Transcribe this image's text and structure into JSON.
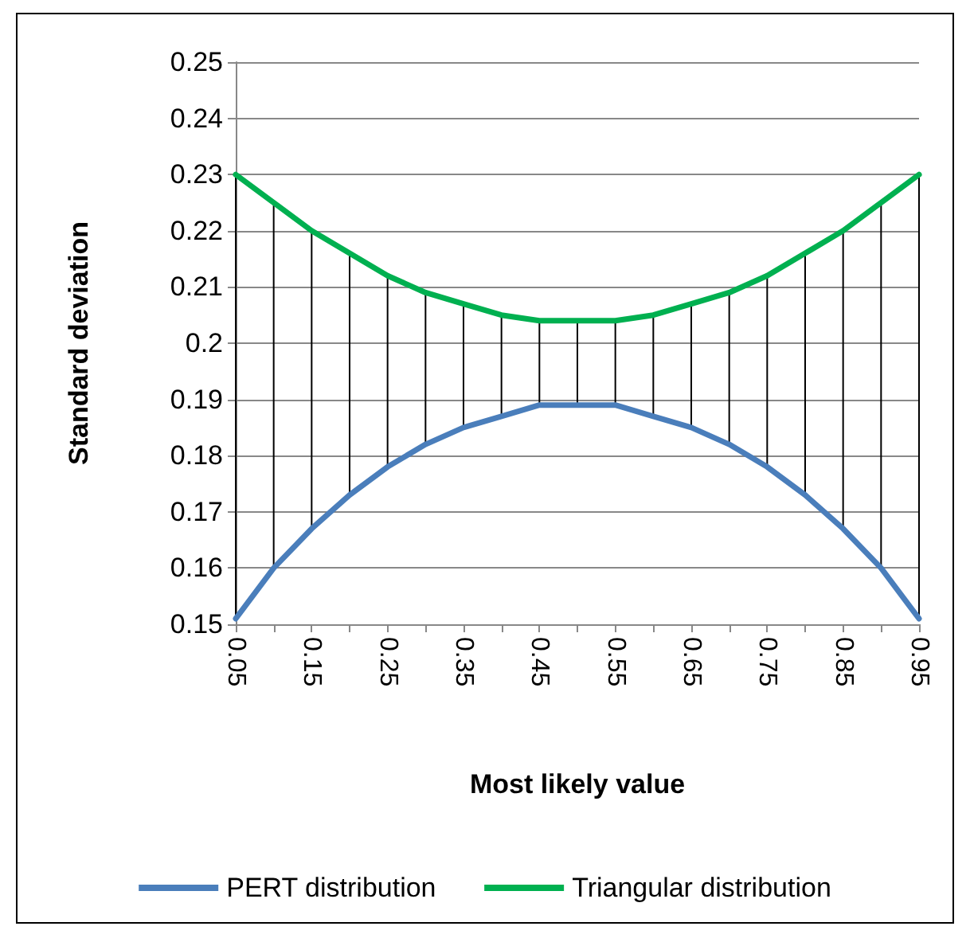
{
  "chart_data": {
    "type": "line",
    "xlabel": "Most likely value",
    "ylabel": "Standard deviation",
    "categories": [
      "0.05",
      null,
      "0.15",
      null,
      "0.25",
      null,
      "0.35",
      null,
      "0.45",
      null,
      "0.55",
      null,
      "0.65",
      null,
      "0.75",
      null,
      "0.85",
      null,
      "0.95"
    ],
    "series": [
      {
        "type": "bar",
        "color": "#000000",
        "base": [
          0.151,
          0.16,
          0.167,
          0.173,
          0.178,
          0.182,
          0.185,
          0.187,
          0.189,
          0.189,
          0.189,
          0.187,
          0.185,
          0.182,
          0.178,
          0.173,
          0.167,
          0.16,
          0.151
        ],
        "values": [
          0.079,
          0.065,
          0.053,
          0.043,
          0.034,
          0.027,
          0.022,
          0.018,
          0.015,
          0.015,
          0.015,
          0.018,
          0.022,
          0.027,
          0.034,
          0.043,
          0.053,
          0.065,
          0.079
        ]
      },
      {
        "name": "PERT distribution",
        "color": "#4a7ebb",
        "values": [
          0.151,
          0.16,
          0.167,
          0.173,
          0.178,
          0.182,
          0.185,
          0.187,
          0.189,
          0.189,
          0.189,
          0.187,
          0.185,
          0.182,
          0.178,
          0.173,
          0.167,
          0.16,
          0.151
        ]
      },
      {
        "name": "Triangular distribution",
        "color": "#00b050",
        "values": [
          0.23,
          0.225,
          0.22,
          0.216,
          0.212,
          0.209,
          0.207,
          0.205,
          0.204,
          0.204,
          0.204,
          0.205,
          0.207,
          0.209,
          0.212,
          0.216,
          0.22,
          0.225,
          0.23
        ]
      }
    ],
    "ylim": [
      0.15,
      0.25
    ],
    "yticks": [
      0.15,
      0.16,
      0.17,
      0.18,
      0.19,
      0.2,
      0.21,
      0.22,
      0.23,
      0.24,
      0.25
    ],
    "grid": "y",
    "legend": "bottom",
    "marker": "none",
    "line_style": "solid"
  }
}
